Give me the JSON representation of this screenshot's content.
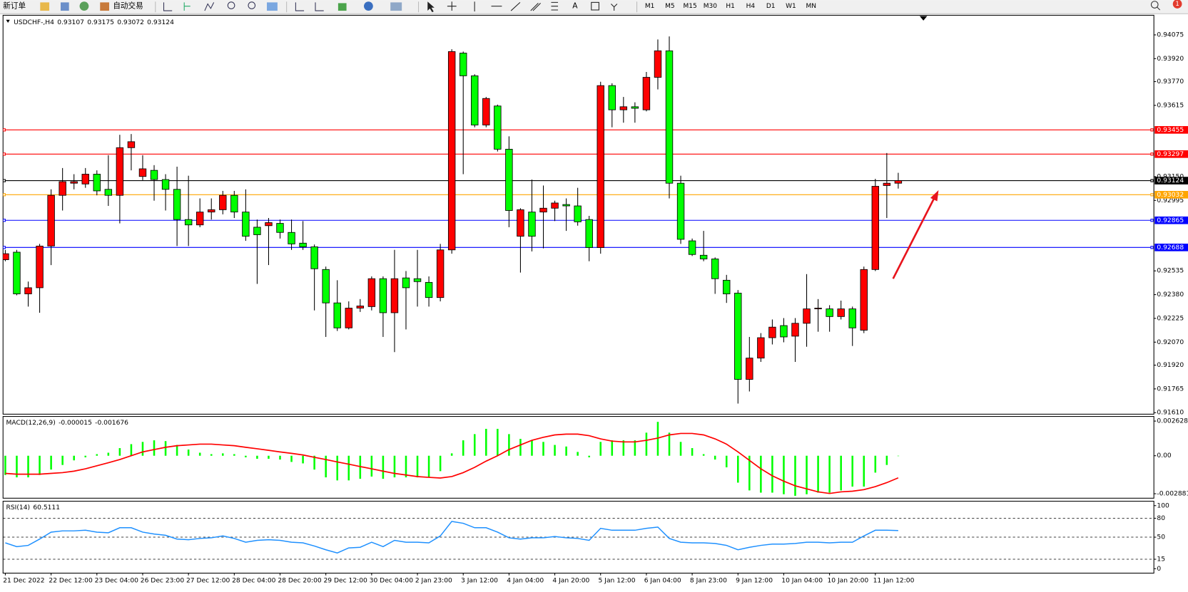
{
  "toolbar": {
    "new_order": "新订单",
    "auto_trading": "自动交易",
    "timeframes": [
      "M1",
      "M5",
      "M15",
      "M30",
      "H1",
      "H4",
      "D1",
      "W1",
      "MN"
    ],
    "notification_count": 1
  },
  "chart_data": [
    {
      "type": "candlestick",
      "title": "USDCHF-,H4",
      "up_color": "#ff0000",
      "down_color": "#00ff00",
      "categories": [
        "21 Dec 2022",
        null,
        null,
        null,
        "22 Dec 12:00",
        null,
        null,
        null,
        "23 Dec 04:00",
        null,
        null,
        null,
        "26 Dec 23:00",
        null,
        null,
        null,
        "27 Dec 12:00",
        null,
        null,
        null,
        "28 Dec 04:00",
        null,
        null,
        null,
        "28 Dec 20:00",
        null,
        null,
        null,
        "29 Dec 12:00",
        null,
        null,
        null,
        "30 Dec 04:00",
        null,
        null,
        null,
        "2 Jan 23:00",
        null,
        null,
        null,
        "3 Jan 12:00",
        null,
        null,
        null,
        "4 Jan 04:00",
        null,
        null,
        null,
        "4 Jan 20:00",
        null,
        null,
        null,
        "5 Jan 12:00",
        null,
        null,
        null,
        "6 Jan 04:00",
        null,
        null,
        null,
        "8 Jan 23:00",
        null,
        null,
        null,
        "9 Jan 12:00",
        null,
        null,
        null,
        "10 Jan 04:00",
        null,
        null,
        null,
        "10 Jan 20:00",
        null,
        null,
        null,
        "11 Jan 12:00",
        null,
        null
      ],
      "ohlc": [
        [
          0.92608,
          0.92672,
          0.92598,
          0.92647
        ],
        [
          0.92657,
          0.92672,
          0.92376,
          0.92385
        ],
        [
          0.92385,
          0.92465,
          0.92302,
          0.92425
        ],
        [
          0.92425,
          0.92711,
          0.92262,
          0.92697
        ],
        [
          0.92697,
          0.93067,
          0.92573,
          0.93028
        ],
        [
          0.93028,
          0.93206,
          0.92929,
          0.93117
        ],
        [
          0.93107,
          0.93166,
          0.93067,
          0.93117
        ],
        [
          0.93102,
          0.93206,
          0.93077,
          0.93166
        ],
        [
          0.93166,
          0.93191,
          0.93028,
          0.93057
        ],
        [
          0.93067,
          0.9329,
          0.92959,
          0.93028
        ],
        [
          0.93028,
          0.93423,
          0.92845,
          0.93339
        ],
        [
          0.93339,
          0.93428,
          0.93191,
          0.93378
        ],
        [
          0.93151,
          0.9329,
          0.93127,
          0.93201
        ],
        [
          0.93191,
          0.93225,
          0.92993,
          0.93131
        ],
        [
          0.93131,
          0.93166,
          0.92929,
          0.93067
        ],
        [
          0.93067,
          0.93215,
          0.92697,
          0.9287
        ],
        [
          0.9287,
          0.93156,
          0.92697,
          0.92835
        ],
        [
          0.92835,
          0.93008,
          0.9282,
          0.92919
        ],
        [
          0.92919,
          0.93008,
          0.9287,
          0.92934
        ],
        [
          0.92934,
          0.93057,
          0.92904,
          0.93028
        ],
        [
          0.93028,
          0.93057,
          0.9288,
          0.92919
        ],
        [
          0.92919,
          0.93067,
          0.92731,
          0.92761
        ],
        [
          0.9282,
          0.9287,
          0.9245,
          0.92771
        ],
        [
          0.9283,
          0.9288,
          0.92573,
          0.9285
        ],
        [
          0.92845,
          0.9287,
          0.92746,
          0.92786
        ],
        [
          0.92786,
          0.9287,
          0.92672,
          0.92711
        ],
        [
          0.92716,
          0.9286,
          0.92672,
          0.92692
        ],
        [
          0.92692,
          0.92707,
          0.92277,
          0.92549
        ],
        [
          0.92544,
          0.92563,
          0.92104,
          0.92326
        ],
        [
          0.92326,
          0.92474,
          0.92143,
          0.92163
        ],
        [
          0.92163,
          0.92336,
          0.92153,
          0.92292
        ],
        [
          0.92292,
          0.92351,
          0.92267,
          0.92306
        ],
        [
          0.92302,
          0.92499,
          0.92277,
          0.92484
        ],
        [
          0.92484,
          0.92499,
          0.92104,
          0.92262
        ],
        [
          0.92262,
          0.92672,
          0.92005,
          0.92484
        ],
        [
          0.92489,
          0.92534,
          0.92153,
          0.92425
        ],
        [
          0.92484,
          0.92672,
          0.92302,
          0.92465
        ],
        [
          0.9246,
          0.92499,
          0.92302,
          0.92361
        ],
        [
          0.92361,
          0.92711,
          0.92336,
          0.92672
        ],
        [
          0.92672,
          0.93981,
          0.92647,
          0.93966
        ],
        [
          0.93956,
          0.93966,
          0.93166,
          0.93808
        ],
        [
          0.93808,
          0.93818,
          0.93472,
          0.93487
        ],
        [
          0.93487,
          0.9367,
          0.93472,
          0.9366
        ],
        [
          0.93611,
          0.9362,
          0.93314,
          0.93329
        ],
        [
          0.93329,
          0.93413,
          0.9282,
          0.92929
        ],
        [
          0.92761,
          0.92944,
          0.92524,
          0.92934
        ],
        [
          0.92919,
          0.93131,
          0.92662,
          0.92761
        ],
        [
          0.92919,
          0.93092,
          0.92682,
          0.92944
        ],
        [
          0.92944,
          0.92993,
          0.9286,
          0.92978
        ],
        [
          0.92968,
          0.93008,
          0.92796,
          0.92959
        ],
        [
          0.92959,
          0.93077,
          0.9283,
          0.92855
        ],
        [
          0.9287,
          0.92894,
          0.92598,
          0.92687
        ],
        [
          0.92687,
          0.93769,
          0.92647,
          0.93744
        ],
        [
          0.93744,
          0.93759,
          0.93472,
          0.93586
        ],
        [
          0.93586,
          0.9367,
          0.93502,
          0.93606
        ],
        [
          0.93606,
          0.93635,
          0.93502,
          0.93596
        ],
        [
          0.93586,
          0.93833,
          0.93576,
          0.93798
        ],
        [
          0.93798,
          0.94045,
          0.93719,
          0.93971
        ],
        [
          0.93971,
          0.94065,
          0.93008,
          0.93107
        ],
        [
          0.93107,
          0.93156,
          0.92711,
          0.92741
        ],
        [
          0.92731,
          0.92746,
          0.92632,
          0.92642
        ],
        [
          0.92637,
          0.92796,
          0.92598,
          0.92613
        ],
        [
          0.92613,
          0.92623,
          0.92385,
          0.92484
        ],
        [
          0.92474,
          0.92509,
          0.92326,
          0.92385
        ],
        [
          0.9239,
          0.9241,
          0.91669,
          0.91827
        ],
        [
          0.91827,
          0.92104,
          0.91748,
          0.91966
        ],
        [
          0.91966,
          0.92129,
          0.91941,
          0.92099
        ],
        [
          0.92099,
          0.92218,
          0.92055,
          0.92168
        ],
        [
          0.92178,
          0.92227,
          0.92069,
          0.92104
        ],
        [
          0.92109,
          0.92227,
          0.91941,
          0.92193
        ],
        [
          0.92193,
          0.92514,
          0.9204,
          0.92287
        ],
        [
          0.92287,
          0.92351,
          0.92138,
          0.92292
        ],
        [
          0.92287,
          0.92311,
          0.92138,
          0.92237
        ],
        [
          0.92237,
          0.92341,
          0.92218,
          0.92287
        ],
        [
          0.92287,
          0.92302,
          0.92045,
          0.92163
        ],
        [
          0.92148,
          0.92563,
          0.92129,
          0.92544
        ],
        [
          0.92544,
          0.93136,
          0.92534,
          0.93087
        ],
        [
          0.93092,
          0.93304,
          0.9288,
          0.93107
        ],
        [
          0.93107,
          0.93175,
          0.93072,
          0.93124
        ]
      ],
      "ylim": [
        0.916,
        0.94203
      ],
      "yticks": [
        0.94075,
        {
          "value": 0.9392,
          "label": "0.93920"
        },
        {
          "value": 0.9377,
          "label": "0.93770"
        },
        0.93615,
        {
          "value": 0.9315,
          "label": "0.93150"
        },
        0.92995,
        0.92535,
        {
          "value": 0.9238,
          "label": "0.92380"
        },
        0.92225,
        {
          "value": 0.9207,
          "label": "0.92070"
        },
        {
          "value": 0.9192,
          "label": "0.91920"
        },
        0.91765,
        {
          "value": 0.9161,
          "label": "0.91610"
        }
      ],
      "levels": [
        {
          "value": 0.93455,
          "color": "#ff0000"
        },
        {
          "value": 0.93297,
          "color": "#ff0000"
        },
        {
          "value": 0.93124,
          "color": "#000000"
        },
        {
          "value": 0.93032,
          "color": "#ffa500"
        },
        {
          "value": 0.92865,
          "color": "#0000ff"
        },
        {
          "value": 0.92688,
          "color": "#0000ff"
        }
      ]
    },
    {
      "type": "macd",
      "title": "MACD(12,26,9)",
      "histogram": {
        "color": "#00ff00",
        "values": [
          -0.00146,
          -0.00164,
          -0.00164,
          -0.00146,
          -0.00105,
          -0.0007,
          -0.00035,
          -0.00012,
          0.00012,
          0.00023,
          0.00058,
          0.00088,
          0.00105,
          0.00117,
          0.00111,
          0.00082,
          0.00047,
          0.00023,
          0.00012,
          0.00018,
          0.00012,
          -0.00012,
          -0.00023,
          -0.00023,
          -0.00029,
          -0.00047,
          -0.00058,
          -0.00105,
          -0.00164,
          -0.00187,
          -0.00187,
          -0.00175,
          -0.00158,
          -0.00175,
          -0.00164,
          -0.00164,
          -0.00164,
          -0.00164,
          -0.00117,
          0.00018,
          0.00117,
          0.00164,
          0.00204,
          0.00204,
          0.00164,
          0.00128,
          0.00117,
          0.00105,
          0.00082,
          0.0007,
          0.00029,
          -0.00012,
          0.00105,
          0.00117,
          0.00117,
          0.00117,
          0.00175,
          0.00257,
          0.00175,
          0.00105,
          0.00058,
          0.00012,
          -0.00029,
          -0.00088,
          -0.00204,
          -0.00263,
          -0.0028,
          -0.0028,
          -0.00292,
          -0.00304,
          -0.00292,
          -0.0028,
          -0.0028,
          -0.00263,
          -0.00234,
          -0.00234,
          -0.00128,
          -0.0007,
          -1.5e-05
        ]
      },
      "signal": {
        "color": "#ff0000",
        "values": [
          -0.00134,
          -0.0014,
          -0.0014,
          -0.0014,
          -0.00134,
          -0.00128,
          -0.00117,
          -0.00099,
          -0.00076,
          -0.00053,
          -0.00029,
          0,
          0.00029,
          0.00047,
          0.00064,
          0.00076,
          0.00082,
          0.00088,
          0.00088,
          0.00082,
          0.00076,
          0.00064,
          0.00053,
          0.00041,
          0.00029,
          0.00018,
          6e-05,
          -0.00012,
          -0.00029,
          -0.00047,
          -0.00064,
          -0.00082,
          -0.00099,
          -0.00117,
          -0.00134,
          -0.00146,
          -0.00158,
          -0.00164,
          -0.00169,
          -0.00158,
          -0.00128,
          -0.00088,
          -0.00041,
          0,
          0.00047,
          0.00082,
          0.00117,
          0.0014,
          0.00158,
          0.00164,
          0.00164,
          0.00152,
          0.00128,
          0.00111,
          0.00105,
          0.00105,
          0.00117,
          0.00134,
          0.00158,
          0.00169,
          0.00169,
          0.00158,
          0.00128,
          0.00088,
          0.00029,
          -0.00035,
          -0.00099,
          -0.00152,
          -0.00193,
          -0.00228,
          -0.00251,
          -0.00274,
          -0.00286,
          -0.00274,
          -0.00269,
          -0.00257,
          -0.00234,
          -0.00204,
          -0.001676
        ]
      },
      "ylim": [
        -0.00322,
        0.00298
      ],
      "yticks": [
        0.002628,
        {
          "value": 0,
          "label": "0.00"
        },
        -0.002881
      ]
    },
    {
      "type": "line",
      "title": "RSI(14)",
      "color": "#1e90ff",
      "values": [
        41,
        35,
        37,
        47,
        58,
        60,
        60,
        61,
        58,
        57,
        65,
        65,
        58,
        55,
        53,
        47,
        46,
        48,
        49,
        52,
        48,
        42,
        45,
        46,
        45,
        42,
        41,
        36,
        30,
        25,
        33,
        34,
        42,
        35,
        45,
        42,
        42,
        41,
        52,
        75,
        72,
        65,
        65,
        58,
        49,
        47,
        49,
        49,
        51,
        49,
        48,
        45,
        64,
        61,
        61,
        61,
        64,
        66,
        48,
        42,
        41,
        41,
        40,
        37,
        30,
        34,
        37,
        39,
        39,
        40,
        42,
        42,
        41,
        42,
        42,
        52,
        61,
        61,
        60.5111
      ],
      "ylim": [
        -7,
        107
      ],
      "yticks": [
        100,
        80,
        50,
        15,
        0
      ],
      "levels": [
        80,
        50,
        15
      ]
    }
  ]
}
